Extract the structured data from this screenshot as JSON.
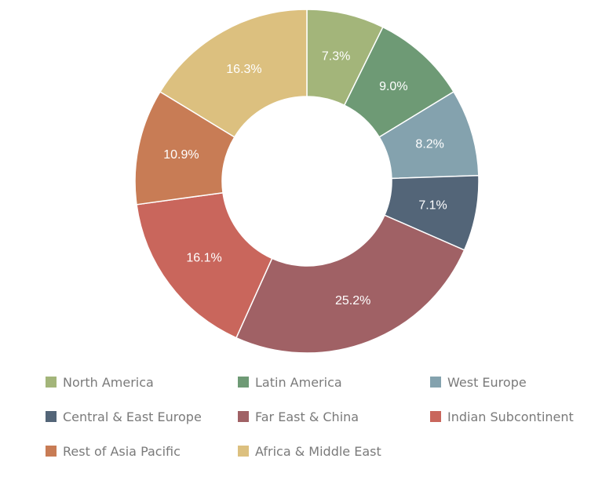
{
  "chart_data": {
    "type": "pie",
    "donut": true,
    "labels": [
      "North America",
      "Latin America",
      "West Europe",
      "Central & East Europe",
      "Far East & China",
      "Indian Subcontinent",
      "Rest of Asia Pacific",
      "Africa & Middle East"
    ],
    "values": [
      7.3,
      9.0,
      8.2,
      7.1,
      25.2,
      16.1,
      10.9,
      16.3
    ],
    "value_labels": [
      "7.3%",
      "9.0%",
      "8.2%",
      "7.1%",
      "25.2%",
      "16.1%",
      "10.9%",
      "16.3%"
    ],
    "colors": [
      "#a3b57a",
      "#6e9a75",
      "#84a2ae",
      "#536578",
      "#a06165",
      "#c9665c",
      "#c87c55",
      "#dcc07f"
    ],
    "legend_position": "bottom",
    "title": ""
  }
}
